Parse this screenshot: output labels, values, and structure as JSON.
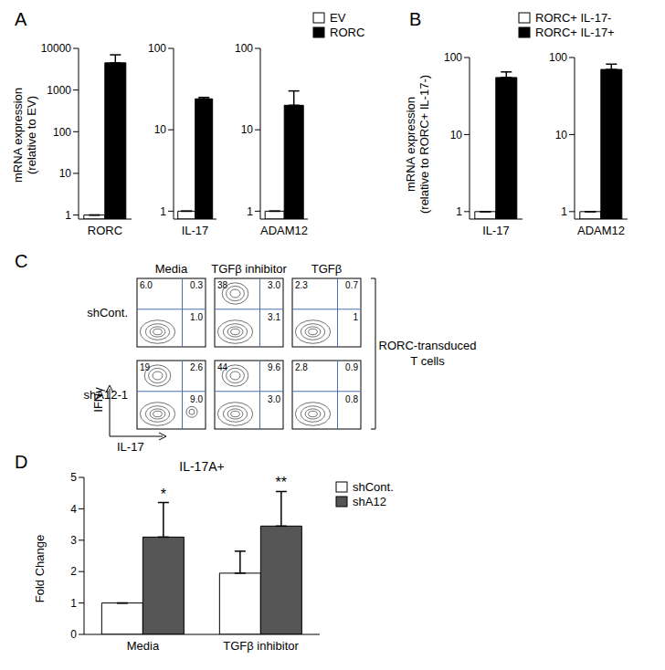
{
  "chart_data": [
    {
      "panel": "A",
      "type": "bar",
      "log": "y",
      "y_label": "mRNA expression (relative to EV)",
      "legend": "top right",
      "categories": [
        "RORC"
      ],
      "ylim": [
        0.8,
        10000
      ],
      "yticks": [
        1,
        10,
        100,
        1000,
        10000
      ],
      "series": [
        {
          "name": "EV",
          "color": "#ffffff",
          "values": [
            1
          ],
          "errors": [
            0
          ]
        },
        {
          "name": "RORC",
          "color": "#000000",
          "values": [
            4500
          ],
          "errors": [
            2500
          ]
        }
      ]
    },
    {
      "type": "bar",
      "log": "y",
      "categories": [
        "IL-17"
      ],
      "ylim": [
        0.8,
        100
      ],
      "yticks": [
        1,
        10,
        100
      ],
      "series": [
        {
          "name": "EV",
          "color": "#ffffff",
          "values": [
            1
          ],
          "errors": [
            0
          ]
        },
        {
          "name": "RORC",
          "color": "#000000",
          "values": [
            24
          ],
          "errors": [
            1
          ]
        }
      ]
    },
    {
      "type": "bar",
      "log": "y",
      "categories": [
        "ADAM12"
      ],
      "ylim": [
        0.8,
        100
      ],
      "yticks": [
        1,
        10,
        100
      ],
      "series": [
        {
          "name": "EV",
          "color": "#ffffff",
          "values": [
            1
          ],
          "errors": [
            0
          ]
        },
        {
          "name": "RORC",
          "color": "#000000",
          "values": [
            20
          ],
          "errors": [
            10
          ]
        }
      ]
    },
    {
      "panel": "B",
      "type": "bar",
      "log": "y",
      "y_label": "mRNA expression (relative to RORC+ IL-17-)",
      "legend": "top right",
      "categories": [
        "IL-17"
      ],
      "ylim": [
        0.8,
        100
      ],
      "yticks": [
        1,
        10,
        100
      ],
      "series": [
        {
          "name": "RORC+ IL-17-",
          "color": "#ffffff",
          "values": [
            1
          ],
          "errors": [
            0
          ]
        },
        {
          "name": "RORC+ IL-17+",
          "color": "#000000",
          "values": [
            55
          ],
          "errors": [
            10
          ]
        }
      ]
    },
    {
      "type": "bar",
      "log": "y",
      "categories": [
        "ADAM12"
      ],
      "ylim": [
        0.8,
        100
      ],
      "yticks": [
        1,
        10,
        100
      ],
      "series": [
        {
          "name": "RORC+ IL-17-",
          "color": "#ffffff",
          "values": [
            1
          ],
          "errors": [
            0
          ]
        },
        {
          "name": "RORC+ IL-17+",
          "color": "#000000",
          "values": [
            70
          ],
          "errors": [
            12
          ]
        }
      ]
    },
    {
      "panel": "C",
      "type": "contour",
      "x_label": "IL-17",
      "y_label": "IFNγ",
      "columns": [
        "Media",
        "TGFβ inhibitor",
        "TGFβ"
      ],
      "rows": [
        {
          "name": "shCont.",
          "quadrants": [
            [
              "6.0",
              "0.3",
              "1.0"
            ],
            [
              "38",
              "3.0",
              "3.1"
            ],
            [
              "2.3",
              "0.7",
              "1"
            ]
          ]
        },
        {
          "name": "shA12-1",
          "quadrants": [
            [
              "19",
              "2.6",
              "9.0"
            ],
            [
              "44",
              "9.6",
              "3.0"
            ],
            [
              "2.8",
              "0.9",
              "0.8"
            ]
          ]
        }
      ],
      "annotation": [
        "RORC-transduced",
        "T cells"
      ]
    },
    {
      "panel": "D",
      "type": "bar",
      "title": "IL-17A+",
      "y_label": "Fold Change",
      "legend": "top right",
      "categories": [
        "Media",
        "TGFβ inhibitor"
      ],
      "ylim": [
        0,
        5
      ],
      "yticks": [
        0,
        1,
        2,
        3,
        4,
        5
      ],
      "series": [
        {
          "name": "shCont.",
          "color": "#ffffff",
          "values": [
            1,
            1.95
          ],
          "errors": [
            0,
            0.7
          ]
        },
        {
          "name": "shA12",
          "color": "#555555",
          "values": [
            3.1,
            3.45
          ],
          "errors": [
            1.1,
            1.1
          ],
          "significance": [
            "*",
            "**"
          ]
        }
      ]
    }
  ]
}
